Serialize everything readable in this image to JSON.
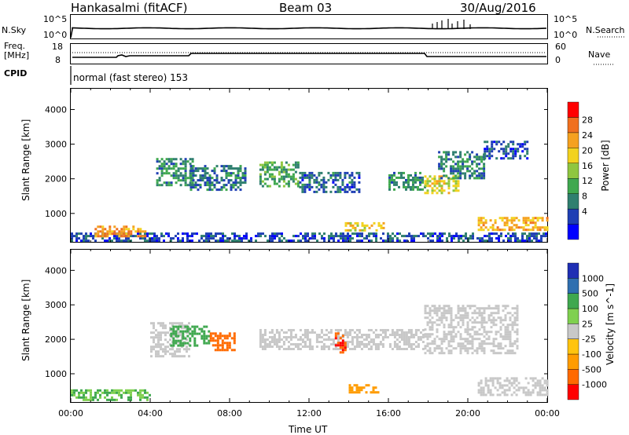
{
  "header": {
    "station": "Hankasalmi (fitACF)",
    "beam": "Beam 03",
    "date": "30/Aug/2016"
  },
  "panels": {
    "nsky_label": "N.Sky",
    "nsky_ticks": [
      "10^5",
      "10^0"
    ],
    "nsearch_label": "N.Search",
    "nsearch_ticks": [
      "10^5",
      "10^0"
    ],
    "freq_label_1": "Freq.",
    "freq_label_2": "[MHz]",
    "freq_ticks": [
      "18",
      "8"
    ],
    "nave_label": "Nave",
    "nave_ticks": [
      "60",
      "0"
    ],
    "cpid_label": "CPID",
    "cpid_value": "normal (fast stereo) 153"
  },
  "colors": {
    "power_scale": [
      "#0000ff",
      "#1f3fb4",
      "#2f7f6f",
      "#3fa84f",
      "#8fc63f",
      "#f2d21f",
      "#f5a11f",
      "#f0701f",
      "#ff0000"
    ],
    "velocity_scale": [
      "#ff0000",
      "#ff6a00",
      "#ff9c00",
      "#ffc40f",
      "#c8c8c8",
      "#7fd04f",
      "#3fa84f",
      "#2f6fb0",
      "#1f2fb4"
    ],
    "ground_scatter": "#c8c8c8"
  },
  "chart_data": [
    {
      "type": "heatmap",
      "name": "power",
      "ylabel": "Slant Range [km]",
      "colorbar_label": "Power [dB]",
      "colorbar_ticks": [
        "28",
        "24",
        "20",
        "16",
        "12",
        "8",
        "4"
      ],
      "ylim": [
        180,
        4600
      ],
      "y_ticks": [
        "4000",
        "3000",
        "2000",
        "1000"
      ],
      "x_range_hours": [
        0,
        24
      ],
      "regions": [
        {
          "t0": 0.0,
          "t1": 24.0,
          "r0": 200,
          "r1": 450,
          "value": 6
        },
        {
          "t0": 1.2,
          "t1": 3.8,
          "r0": 350,
          "r1": 650,
          "value": 24
        },
        {
          "t0": 4.3,
          "t1": 6.2,
          "r0": 1800,
          "r1": 2600,
          "value": 10
        },
        {
          "t0": 6.0,
          "t1": 8.8,
          "r0": 1700,
          "r1": 2400,
          "value": 8
        },
        {
          "t0": 9.5,
          "t1": 11.5,
          "r0": 1800,
          "r1": 2500,
          "value": 12
        },
        {
          "t0": 11.5,
          "t1": 14.5,
          "r0": 1600,
          "r1": 2200,
          "value": 7
        },
        {
          "t0": 13.8,
          "t1": 15.8,
          "r0": 500,
          "r1": 750,
          "value": 20
        },
        {
          "t0": 16.0,
          "t1": 17.8,
          "r0": 1700,
          "r1": 2200,
          "value": 10
        },
        {
          "t0": 17.8,
          "t1": 19.5,
          "r0": 1600,
          "r1": 2100,
          "value": 18
        },
        {
          "t0": 18.5,
          "t1": 20.8,
          "r0": 2000,
          "r1": 2800,
          "value": 9
        },
        {
          "t0": 20.8,
          "t1": 23.0,
          "r0": 2600,
          "r1": 3100,
          "value": 6
        },
        {
          "t0": 20.5,
          "t1": 24.0,
          "r0": 500,
          "r1": 900,
          "value": 22
        }
      ]
    },
    {
      "type": "heatmap",
      "name": "velocity",
      "ylabel": "Slant Range [km]",
      "colorbar_label": "Velocity [m s^-1]",
      "colorbar_ticks": [
        "1000",
        "500",
        "100",
        "25",
        "-25",
        "-100",
        "-500",
        "-1000"
      ],
      "xlabel": "Time UT",
      "x_ticks": [
        "00:00",
        "04:00",
        "08:00",
        "12:00",
        "16:00",
        "20:00",
        "00:00"
      ],
      "ylim": [
        180,
        4600
      ],
      "y_ticks": [
        "4000",
        "3000",
        "2000",
        "1000"
      ],
      "x_range_hours": [
        0,
        24
      ],
      "regions": [
        {
          "t0": 0.0,
          "t1": 4.0,
          "r0": 250,
          "r1": 550,
          "value": 100
        },
        {
          "t0": 4.0,
          "t1": 6.0,
          "r0": 1500,
          "r1": 2500,
          "value": 0
        },
        {
          "t0": 5.0,
          "t1": 7.0,
          "r0": 1800,
          "r1": 2400,
          "value": 150
        },
        {
          "t0": 7.0,
          "t1": 8.2,
          "r0": 1700,
          "r1": 2200,
          "value": -700
        },
        {
          "t0": 9.5,
          "t1": 17.8,
          "r0": 1700,
          "r1": 2300,
          "value": 0
        },
        {
          "t0": 13.3,
          "t1": 13.8,
          "r0": 1600,
          "r1": 2200,
          "value": -1000
        },
        {
          "t0": 14.0,
          "t1": 15.5,
          "r0": 450,
          "r1": 700,
          "value": -300
        },
        {
          "t0": 17.8,
          "t1": 22.5,
          "r0": 1600,
          "r1": 3000,
          "value": 0
        },
        {
          "t0": 20.5,
          "t1": 24.0,
          "r0": 400,
          "r1": 900,
          "value": 0
        }
      ]
    }
  ]
}
